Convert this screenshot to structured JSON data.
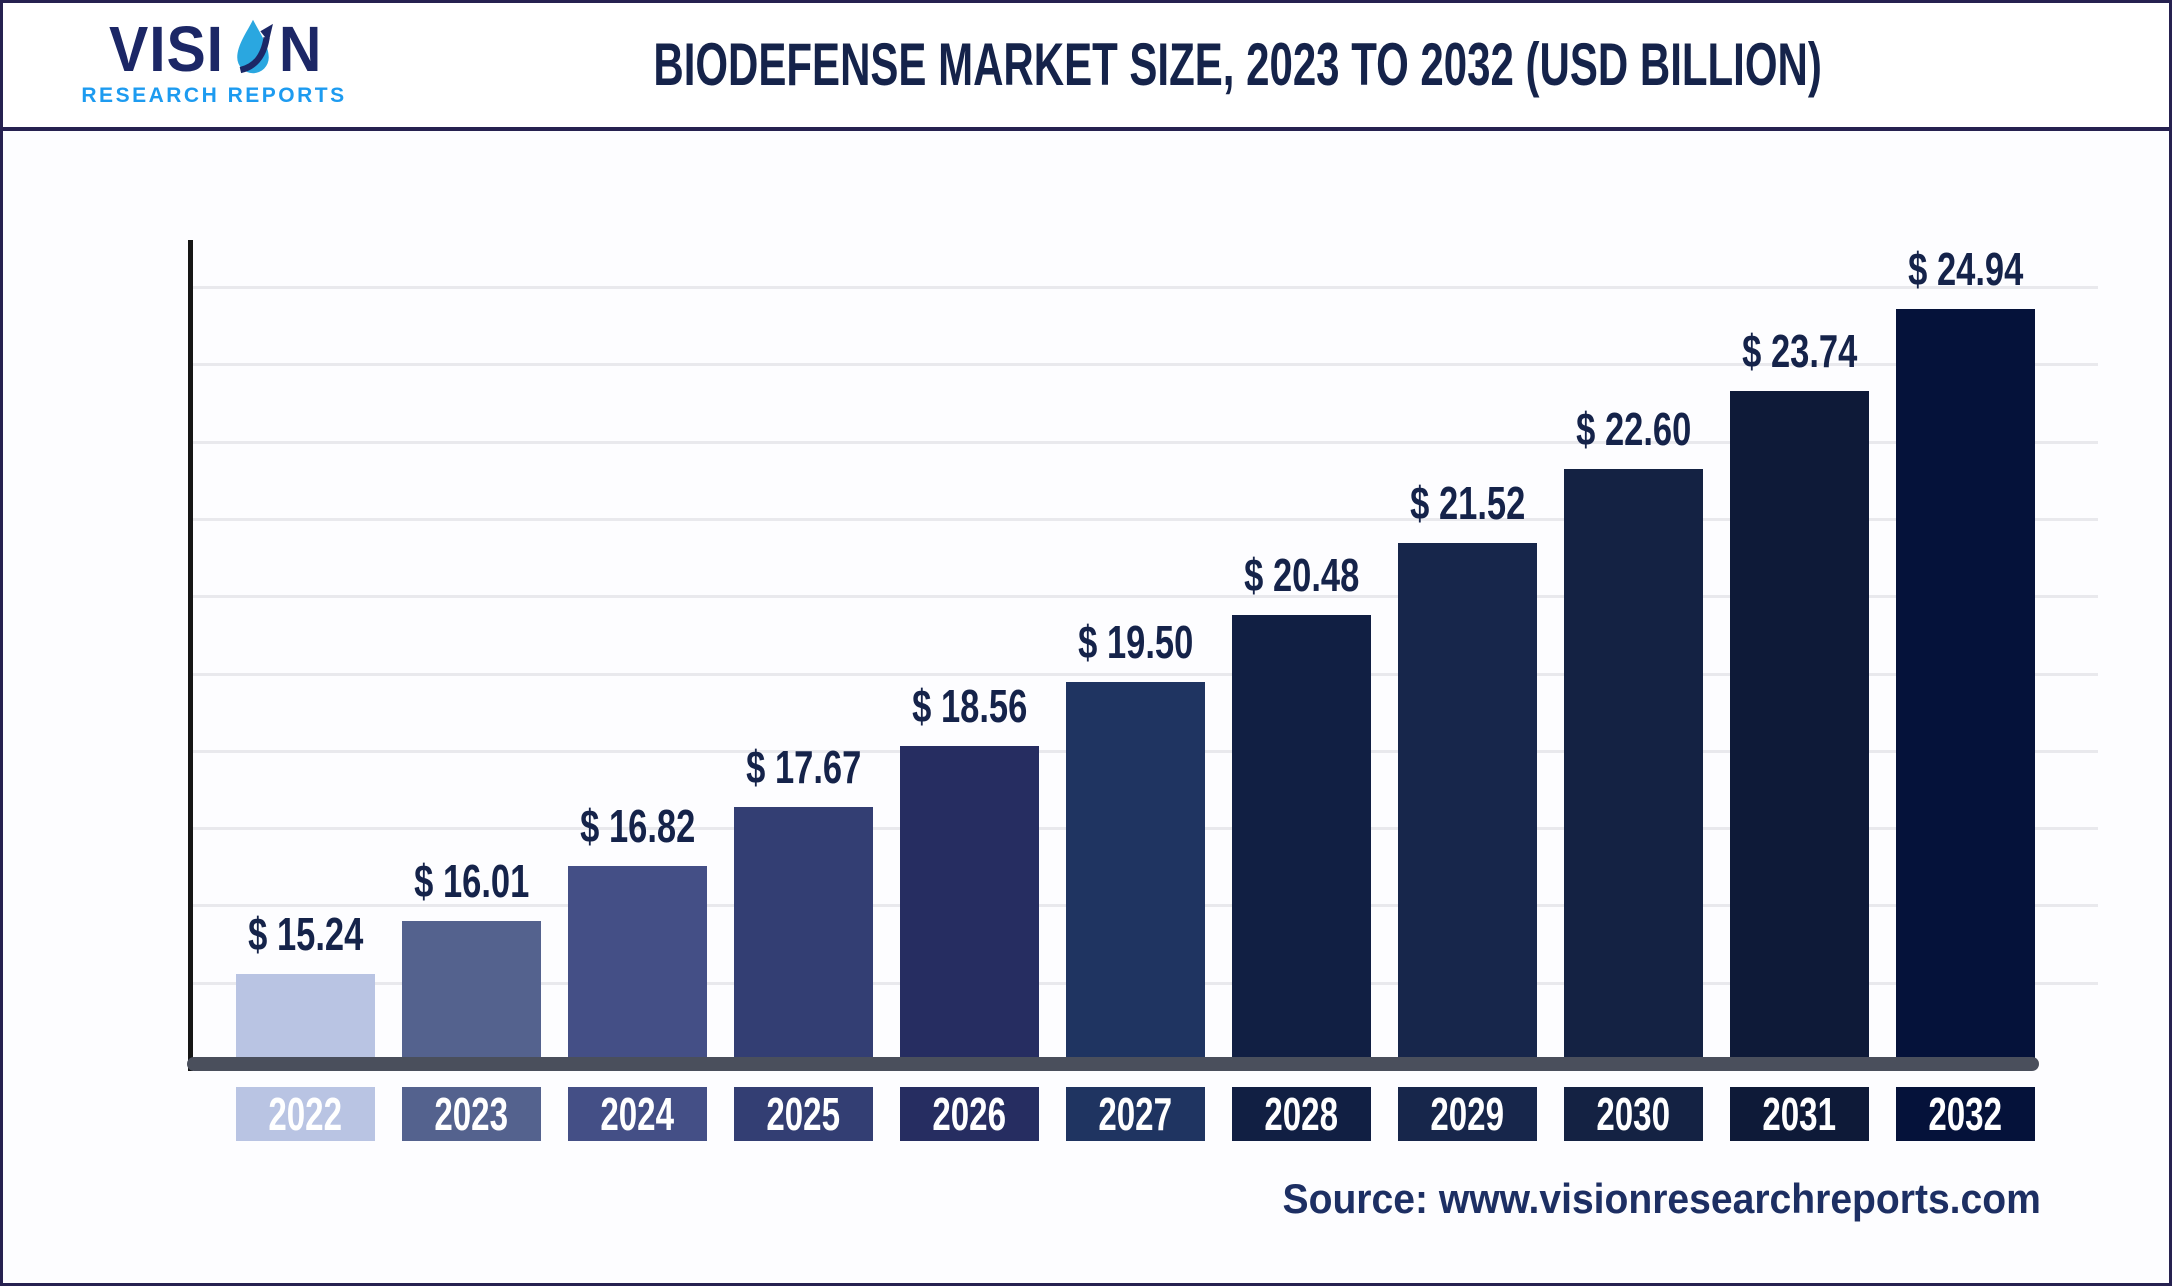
{
  "header": {
    "logo_word_left": "VISI",
    "logo_word_right": "N",
    "logo_subtitle": "RESEARCH REPORTS",
    "title": "BIODEFENSE MARKET SIZE, 2023 TO 2032 (USD BILLION)"
  },
  "chart_data": {
    "type": "bar",
    "title": "Biodefense Market Size, 2023 to 2032 (USD Billion)",
    "unit": "USD Billion",
    "categories": [
      "2022",
      "2023",
      "2024",
      "2025",
      "2026",
      "2027",
      "2028",
      "2029",
      "2030",
      "2031",
      "2032"
    ],
    "values": [
      15.24,
      16.01,
      16.82,
      17.67,
      18.56,
      19.5,
      20.48,
      21.52,
      22.6,
      23.74,
      24.94
    ],
    "value_labels": [
      "$ 15.24",
      "$ 16.01",
      "$ 16.82",
      "$ 17.67",
      "$ 18.56",
      "$ 19.50",
      "$ 20.48",
      "$ 21.52",
      "$ 22.60",
      "$ 23.74",
      "$ 24.94"
    ],
    "bar_colors": [
      "#b9c4e3",
      "#54628e",
      "#444f86",
      "#333e73",
      "#262d61",
      "#1f3461",
      "#111f43",
      "#17264b",
      "#142243",
      "#0e1a38",
      "#05123a"
    ],
    "ylim": [
      14,
      26
    ],
    "grid": true,
    "legend_position": "none",
    "colors": {
      "grid": "#e9e9ed",
      "y_axis": "#161616",
      "x_axis": "#4a4f5c",
      "value_text": "#15234a",
      "year_text": "#ffffff"
    }
  },
  "footer": {
    "source": "Source: www.visionresearchreports.com"
  }
}
